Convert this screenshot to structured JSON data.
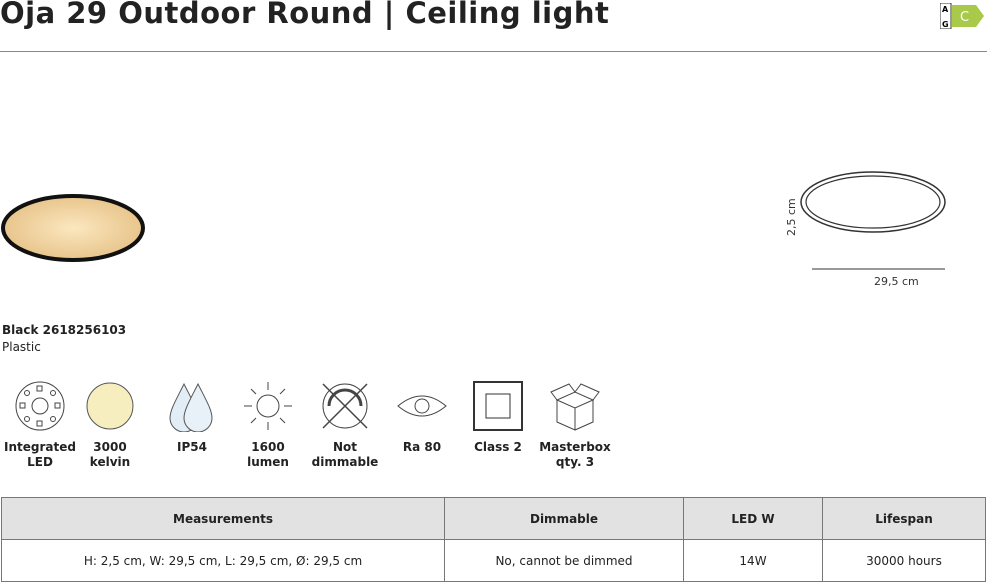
{
  "title": "Oja 29 Outdoor Round | Ceiling light",
  "energy_label": {
    "scale_top": "A",
    "scale_bottom": "G",
    "class": "C",
    "color": "#a8c94a"
  },
  "product": {
    "variant": "Black 2618256103",
    "material": "Plastic"
  },
  "dimensions": {
    "height": "2,5 cm",
    "width": "29,5 cm"
  },
  "features": [
    {
      "icon": "integrated-led-icon",
      "label1": "Integrated",
      "label2": "LED"
    },
    {
      "icon": "color-temperature-icon",
      "label1": "3000",
      "label2": "kelvin"
    },
    {
      "icon": "water-drops-icon",
      "label1": "IP54",
      "label2": ""
    },
    {
      "icon": "sun-icon",
      "label1": "1600",
      "label2": "lumen"
    },
    {
      "icon": "not-dimmable-icon",
      "label1": "Not",
      "label2": "dimmable"
    },
    {
      "icon": "eye-icon",
      "label1": "Ra 80",
      "label2": ""
    },
    {
      "icon": "class2-icon",
      "label1": "Class 2",
      "label2": ""
    },
    {
      "icon": "box-icon",
      "label1": "Masterbox",
      "label2": "qty. 3"
    }
  ],
  "table": {
    "headers": [
      "Measurements",
      "Dimmable",
      "LED W",
      "Lifespan"
    ],
    "row": [
      "H: 2,5 cm, W: 29,5 cm, L: 29,5 cm, Ø: 29,5 cm",
      "No, cannot be dimmed",
      "14W",
      "30000 hours"
    ]
  }
}
